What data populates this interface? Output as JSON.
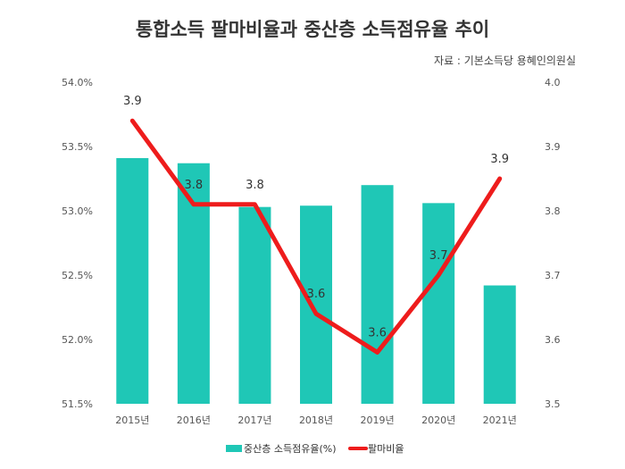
{
  "chart_data": {
    "type": "bar+line",
    "title": "통합소득 팔마비율과 중산층 소득점유율 추이",
    "source": "자료 : 기본소득당 용혜인의원실",
    "categories": [
      "2015년",
      "2016년",
      "2017년",
      "2018년",
      "2019년",
      "2020년",
      "2021년"
    ],
    "series": [
      {
        "name": "중산층 소득점유율(%)",
        "type": "bar",
        "axis": "left",
        "color": "#1fc7b6",
        "values": [
          53.41,
          53.37,
          53.03,
          53.04,
          53.2,
          53.06,
          52.42
        ]
      },
      {
        "name": "팔마비율",
        "type": "line",
        "axis": "right",
        "color": "#ee1c1c",
        "values": [
          3.94,
          3.81,
          3.81,
          3.64,
          3.58,
          3.7,
          3.85
        ],
        "data_labels": [
          "3.9",
          "3.8",
          "3.8",
          "3.6",
          "3.6",
          "3.7",
          "3.9"
        ]
      }
    ],
    "left_axis": {
      "range": [
        51.5,
        54.0
      ],
      "ticks": [
        "51.5%",
        "52.0%",
        "52.5%",
        "53.0%",
        "53.5%",
        "54.0%"
      ],
      "tick_values": [
        51.5,
        52.0,
        52.5,
        53.0,
        53.5,
        54.0
      ]
    },
    "right_axis": {
      "range": [
        3.5,
        4.0
      ],
      "ticks": [
        "3.5",
        "3.6",
        "3.7",
        "3.8",
        "3.9",
        "4.0"
      ],
      "tick_values": [
        3.5,
        3.6,
        3.7,
        3.8,
        3.9,
        4.0
      ]
    },
    "grid": false,
    "legend": "bottom-center"
  }
}
